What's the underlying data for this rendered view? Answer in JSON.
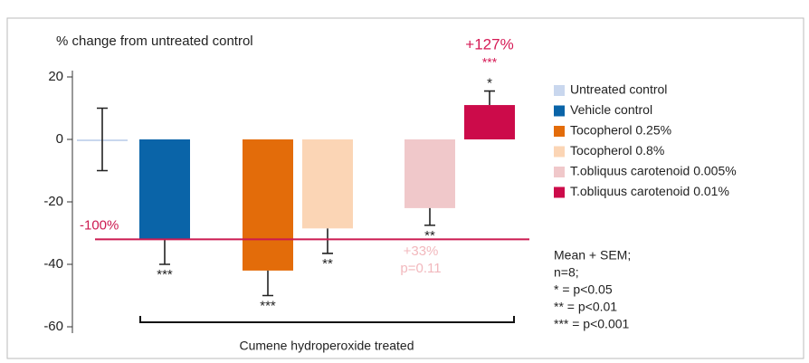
{
  "chart_data": {
    "type": "bar",
    "title": "% change from untreated control",
    "categories": [
      "Untreated control",
      "Vehicle control",
      "Tocopherol 0.25%",
      "Tocopherol 0.8%",
      "T.obliquus carotenoid 0.005%",
      "T.obliquus carotenoid 0.01%"
    ],
    "values": [
      0,
      -32,
      -42,
      -28.5,
      -22,
      11
    ],
    "errors": [
      10,
      8,
      8,
      8,
      5.5,
      4.5
    ],
    "colors": [
      "#c9d7ee",
      "#0a64a8",
      "#e36c0a",
      "#fbd5b5",
      "#f0c8ca",
      "#cc0b4a"
    ],
    "significance": [
      null,
      "***",
      "***",
      "**",
      "**",
      "*"
    ],
    "ylim": [
      -60,
      20
    ],
    "yticks": [
      20,
      0,
      -20,
      -40,
      -60
    ],
    "reference_line": {
      "value": -32,
      "label": "-100%",
      "color": "#cc1a50"
    },
    "annotations": [
      {
        "text": "+127%",
        "color": "#d61a55"
      },
      {
        "text": "***",
        "color": "#d61a55"
      },
      {
        "text": "+33%",
        "color": "#f2b8bd"
      },
      {
        "text": "p=0.11",
        "color": "#f2b8bd"
      }
    ],
    "bracket_label": "Cumene hydroperoxide treated",
    "notes": [
      "Mean + SEM;",
      "n=8;",
      "* = p<0.05",
      "** = p<0.01",
      "*** = p<0.001"
    ]
  }
}
